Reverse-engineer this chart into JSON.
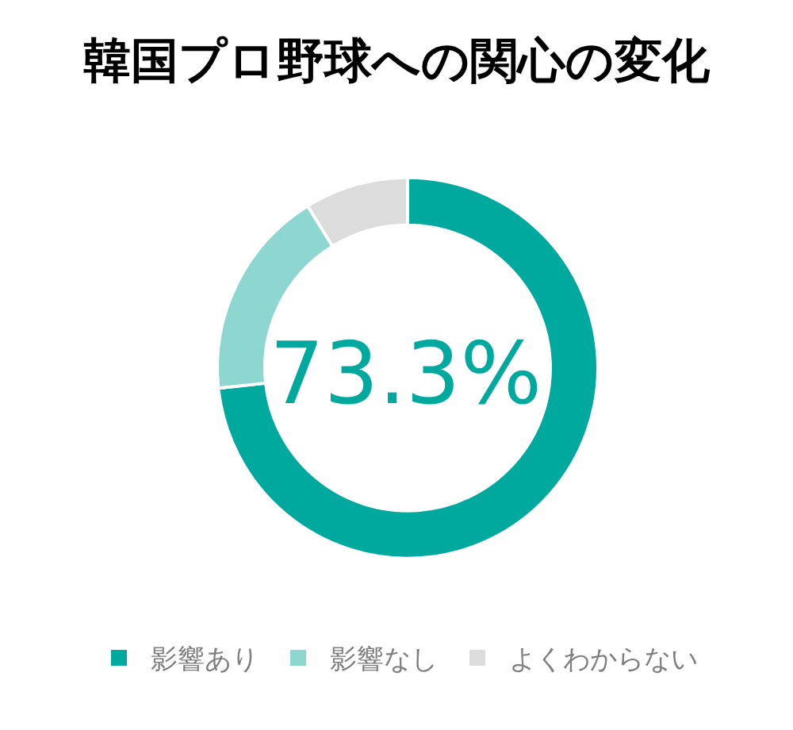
{
  "chart_data": {
    "type": "donut",
    "title": "韓国プロ野球への関心の変化",
    "categories": [
      "影響あり",
      "影響なし",
      "よくわからない"
    ],
    "values": [
      73.3,
      17.9,
      8.8
    ],
    "colors": [
      "#00a99d",
      "#8ed6d0",
      "#dcdcdc"
    ],
    "annotations": [
      "73.3%"
    ],
    "legend": "bottom"
  }
}
